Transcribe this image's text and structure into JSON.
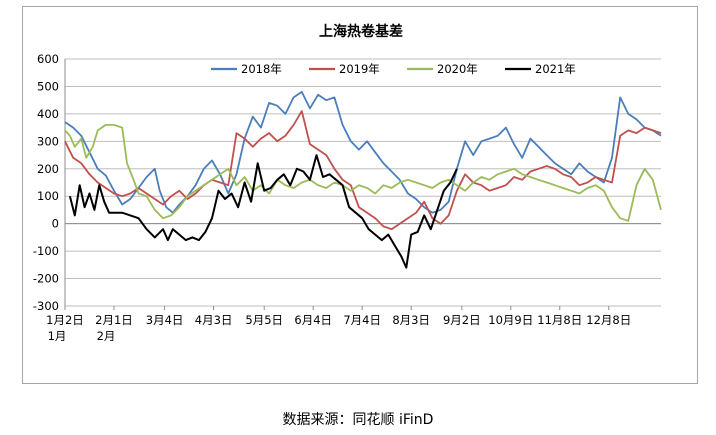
{
  "source_note": "数据来源：同花顺 iFinD",
  "chart_data": {
    "type": "line",
    "title": "上海热卷基差",
    "xlabel": "",
    "ylabel": "",
    "ylim": [
      -300,
      600
    ],
    "yticks": [
      -300,
      -200,
      -100,
      0,
      100,
      200,
      300,
      400,
      500,
      600
    ],
    "xlim": [
      0,
      365
    ],
    "x_ticks": [
      {
        "x": 0,
        "label": "1月2日",
        "sub": "1月"
      },
      {
        "x": 30,
        "label": "2月1日",
        "sub": "2月"
      },
      {
        "x": 61,
        "label": "3月4日",
        "sub": ""
      },
      {
        "x": 91,
        "label": "4月3日",
        "sub": ""
      },
      {
        "x": 122,
        "label": "5月5日",
        "sub": ""
      },
      {
        "x": 152,
        "label": "6月4日",
        "sub": ""
      },
      {
        "x": 182,
        "label": "7月4日",
        "sub": ""
      },
      {
        "x": 212,
        "label": "8月3日",
        "sub": ""
      },
      {
        "x": 243,
        "label": "9月2日",
        "sub": ""
      },
      {
        "x": 273,
        "label": "10月9日",
        "sub": ""
      },
      {
        "x": 303,
        "label": "11月8日",
        "sub": ""
      },
      {
        "x": 333,
        "label": "12月8日",
        "sub": ""
      }
    ],
    "legend_position": "top-center",
    "grid": "horizontal",
    "series": [
      {
        "name": "2018年",
        "color": "#4a7ebb",
        "points": [
          [
            0,
            370
          ],
          [
            5,
            350
          ],
          [
            10,
            320
          ],
          [
            15,
            260
          ],
          [
            20,
            200
          ],
          [
            25,
            175
          ],
          [
            30,
            120
          ],
          [
            35,
            70
          ],
          [
            40,
            90
          ],
          [
            45,
            130
          ],
          [
            50,
            170
          ],
          [
            55,
            200
          ],
          [
            58,
            120
          ],
          [
            62,
            60
          ],
          [
            66,
            40
          ],
          [
            70,
            70
          ],
          [
            75,
            100
          ],
          [
            80,
            140
          ],
          [
            85,
            200
          ],
          [
            90,
            230
          ],
          [
            95,
            180
          ],
          [
            100,
            110
          ],
          [
            105,
            180
          ],
          [
            110,
            310
          ],
          [
            115,
            390
          ],
          [
            120,
            350
          ],
          [
            125,
            440
          ],
          [
            130,
            430
          ],
          [
            135,
            400
          ],
          [
            140,
            460
          ],
          [
            145,
            480
          ],
          [
            150,
            420
          ],
          [
            155,
            470
          ],
          [
            160,
            450
          ],
          [
            165,
            460
          ],
          [
            170,
            360
          ],
          [
            175,
            300
          ],
          [
            180,
            270
          ],
          [
            185,
            300
          ],
          [
            190,
            260
          ],
          [
            195,
            220
          ],
          [
            200,
            190
          ],
          [
            205,
            160
          ],
          [
            210,
            110
          ],
          [
            215,
            90
          ],
          [
            220,
            60
          ],
          [
            225,
            40
          ],
          [
            230,
            50
          ],
          [
            235,
            80
          ],
          [
            240,
            200
          ],
          [
            245,
            300
          ],
          [
            250,
            250
          ],
          [
            255,
            300
          ],
          [
            260,
            310
          ],
          [
            265,
            320
          ],
          [
            270,
            350
          ],
          [
            275,
            290
          ],
          [
            280,
            240
          ],
          [
            285,
            310
          ],
          [
            290,
            280
          ],
          [
            295,
            250
          ],
          [
            300,
            220
          ],
          [
            305,
            200
          ],
          [
            310,
            180
          ],
          [
            315,
            220
          ],
          [
            320,
            190
          ],
          [
            325,
            170
          ],
          [
            330,
            150
          ],
          [
            335,
            240
          ],
          [
            340,
            460
          ],
          [
            345,
            400
          ],
          [
            350,
            380
          ],
          [
            355,
            350
          ],
          [
            360,
            340
          ],
          [
            365,
            320
          ]
        ]
      },
      {
        "name": "2019年",
        "color": "#c0504d",
        "points": [
          [
            0,
            300
          ],
          [
            5,
            240
          ],
          [
            10,
            220
          ],
          [
            15,
            180
          ],
          [
            20,
            150
          ],
          [
            25,
            130
          ],
          [
            30,
            110
          ],
          [
            35,
            100
          ],
          [
            40,
            110
          ],
          [
            45,
            130
          ],
          [
            50,
            110
          ],
          [
            55,
            90
          ],
          [
            60,
            70
          ],
          [
            65,
            100
          ],
          [
            70,
            120
          ],
          [
            75,
            90
          ],
          [
            80,
            110
          ],
          [
            85,
            140
          ],
          [
            90,
            160
          ],
          [
            95,
            150
          ],
          [
            100,
            140
          ],
          [
            105,
            330
          ],
          [
            110,
            310
          ],
          [
            115,
            280
          ],
          [
            120,
            310
          ],
          [
            125,
            330
          ],
          [
            130,
            300
          ],
          [
            135,
            320
          ],
          [
            140,
            360
          ],
          [
            145,
            410
          ],
          [
            150,
            290
          ],
          [
            155,
            270
          ],
          [
            160,
            250
          ],
          [
            165,
            200
          ],
          [
            170,
            160
          ],
          [
            175,
            140
          ],
          [
            180,
            60
          ],
          [
            185,
            40
          ],
          [
            190,
            20
          ],
          [
            195,
            -10
          ],
          [
            200,
            -20
          ],
          [
            205,
            0
          ],
          [
            210,
            20
          ],
          [
            215,
            40
          ],
          [
            220,
            80
          ],
          [
            225,
            20
          ],
          [
            230,
            0
          ],
          [
            235,
            30
          ],
          [
            240,
            120
          ],
          [
            245,
            180
          ],
          [
            250,
            150
          ],
          [
            255,
            140
          ],
          [
            260,
            120
          ],
          [
            265,
            130
          ],
          [
            270,
            140
          ],
          [
            275,
            170
          ],
          [
            280,
            160
          ],
          [
            285,
            190
          ],
          [
            290,
            200
          ],
          [
            295,
            210
          ],
          [
            300,
            200
          ],
          [
            305,
            180
          ],
          [
            310,
            170
          ],
          [
            315,
            140
          ],
          [
            320,
            150
          ],
          [
            325,
            170
          ],
          [
            330,
            160
          ],
          [
            335,
            150
          ],
          [
            340,
            320
          ],
          [
            345,
            340
          ],
          [
            350,
            330
          ],
          [
            355,
            350
          ],
          [
            360,
            340
          ],
          [
            365,
            330
          ]
        ]
      },
      {
        "name": "2020年",
        "color": "#9bbb59",
        "points": [
          [
            0,
            340
          ],
          [
            3,
            320
          ],
          [
            6,
            280
          ],
          [
            10,
            310
          ],
          [
            13,
            240
          ],
          [
            17,
            280
          ],
          [
            20,
            340
          ],
          [
            25,
            360
          ],
          [
            30,
            360
          ],
          [
            35,
            350
          ],
          [
            38,
            220
          ],
          [
            42,
            160
          ],
          [
            45,
            110
          ],
          [
            50,
            100
          ],
          [
            55,
            50
          ],
          [
            60,
            20
          ],
          [
            65,
            30
          ],
          [
            70,
            60
          ],
          [
            75,
            100
          ],
          [
            80,
            120
          ],
          [
            85,
            140
          ],
          [
            90,
            160
          ],
          [
            95,
            180
          ],
          [
            100,
            200
          ],
          [
            105,
            140
          ],
          [
            110,
            170
          ],
          [
            115,
            120
          ],
          [
            120,
            140
          ],
          [
            125,
            110
          ],
          [
            130,
            160
          ],
          [
            135,
            140
          ],
          [
            140,
            130
          ],
          [
            145,
            150
          ],
          [
            150,
            160
          ],
          [
            155,
            140
          ],
          [
            160,
            130
          ],
          [
            165,
            150
          ],
          [
            170,
            140
          ],
          [
            175,
            120
          ],
          [
            180,
            140
          ],
          [
            185,
            130
          ],
          [
            190,
            110
          ],
          [
            195,
            140
          ],
          [
            200,
            130
          ],
          [
            205,
            150
          ],
          [
            210,
            160
          ],
          [
            215,
            150
          ],
          [
            220,
            140
          ],
          [
            225,
            130
          ],
          [
            230,
            150
          ],
          [
            235,
            160
          ],
          [
            240,
            140
          ],
          [
            245,
            120
          ],
          [
            250,
            150
          ],
          [
            255,
            170
          ],
          [
            260,
            160
          ],
          [
            265,
            180
          ],
          [
            270,
            190
          ],
          [
            275,
            200
          ],
          [
            280,
            180
          ],
          [
            285,
            170
          ],
          [
            290,
            160
          ],
          [
            295,
            150
          ],
          [
            300,
            140
          ],
          [
            305,
            130
          ],
          [
            310,
            120
          ],
          [
            315,
            110
          ],
          [
            320,
            130
          ],
          [
            325,
            140
          ],
          [
            330,
            120
          ],
          [
            335,
            60
          ],
          [
            340,
            20
          ],
          [
            345,
            10
          ],
          [
            350,
            140
          ],
          [
            355,
            200
          ],
          [
            360,
            160
          ],
          [
            365,
            50
          ]
        ]
      },
      {
        "name": "2021年",
        "color": "#000000",
        "points": [
          [
            3,
            100
          ],
          [
            6,
            30
          ],
          [
            9,
            140
          ],
          [
            12,
            60
          ],
          [
            15,
            110
          ],
          [
            18,
            50
          ],
          [
            21,
            140
          ],
          [
            24,
            80
          ],
          [
            27,
            40
          ],
          [
            30,
            40
          ],
          [
            35,
            40
          ],
          [
            40,
            30
          ],
          [
            45,
            20
          ],
          [
            50,
            -20
          ],
          [
            55,
            -50
          ],
          [
            60,
            -20
          ],
          [
            63,
            -60
          ],
          [
            66,
            -20
          ],
          [
            70,
            -40
          ],
          [
            74,
            -60
          ],
          [
            78,
            -50
          ],
          [
            82,
            -60
          ],
          [
            86,
            -30
          ],
          [
            90,
            20
          ],
          [
            94,
            120
          ],
          [
            98,
            90
          ],
          [
            102,
            110
          ],
          [
            106,
            60
          ],
          [
            110,
            150
          ],
          [
            114,
            80
          ],
          [
            118,
            220
          ],
          [
            122,
            120
          ],
          [
            126,
            130
          ],
          [
            130,
            160
          ],
          [
            134,
            180
          ],
          [
            138,
            140
          ],
          [
            142,
            200
          ],
          [
            146,
            190
          ],
          [
            150,
            160
          ],
          [
            154,
            250
          ],
          [
            158,
            170
          ],
          [
            162,
            180
          ],
          [
            166,
            160
          ],
          [
            170,
            140
          ],
          [
            174,
            60
          ],
          [
            178,
            40
          ],
          [
            182,
            20
          ],
          [
            186,
            -20
          ],
          [
            190,
            -40
          ],
          [
            194,
            -60
          ],
          [
            198,
            -40
          ],
          [
            202,
            -80
          ],
          [
            206,
            -120
          ],
          [
            209,
            -160
          ],
          [
            212,
            -40
          ],
          [
            216,
            -30
          ],
          [
            220,
            30
          ],
          [
            224,
            -20
          ],
          [
            228,
            50
          ],
          [
            232,
            120
          ],
          [
            236,
            150
          ],
          [
            240,
            200
          ]
        ]
      }
    ]
  }
}
